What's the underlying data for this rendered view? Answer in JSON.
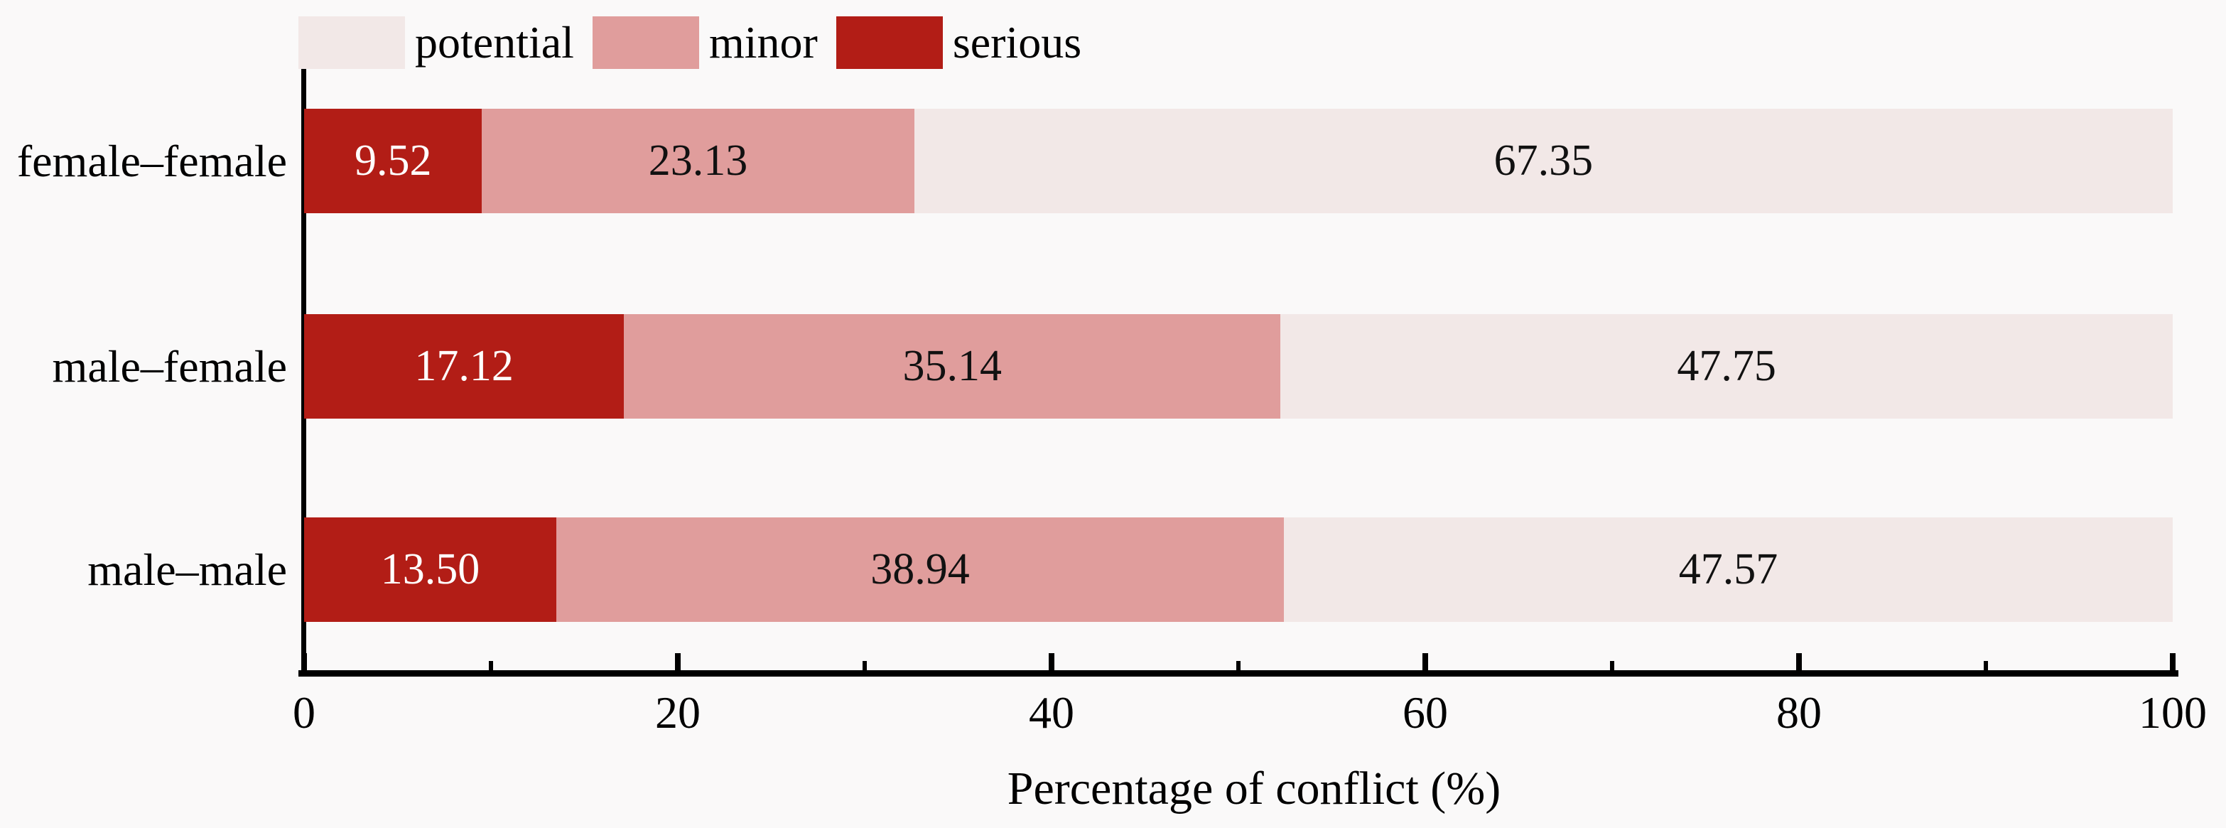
{
  "chart_data": {
    "type": "bar",
    "subtype": "horizontal_stacked",
    "categories": [
      "female–female",
      "male–female",
      "male–male"
    ],
    "series": [
      {
        "name": "serious",
        "color": "#b21d16",
        "label_color": "#ffffff",
        "values": [
          9.52,
          17.12,
          13.5
        ],
        "labels": [
          "9.52",
          "17.12",
          "13.50"
        ]
      },
      {
        "name": "minor",
        "color": "#e09d9c",
        "label_color": "#111111",
        "values": [
          23.13,
          35.14,
          38.94
        ],
        "labels": [
          "23.13",
          "35.14",
          "38.94"
        ]
      },
      {
        "name": "potential",
        "color": "#f2e8e7",
        "label_color": "#111111",
        "values": [
          67.35,
          47.75,
          47.57
        ],
        "labels": [
          "67.35",
          "47.75",
          "47.57"
        ]
      }
    ],
    "legend_order": [
      "potential",
      "minor",
      "serious"
    ],
    "xlabel": "Percentage of conflict (%)",
    "xlim": [
      0,
      100
    ],
    "x_major_ticks": [
      0,
      20,
      40,
      60,
      80,
      100
    ],
    "x_minor_ticks": [
      10,
      30,
      50,
      70,
      90
    ],
    "legend_position": "top-left",
    "grid": false
  },
  "colors": {
    "axis": "#000000",
    "background": "#faf9f9",
    "text": "#000000"
  }
}
